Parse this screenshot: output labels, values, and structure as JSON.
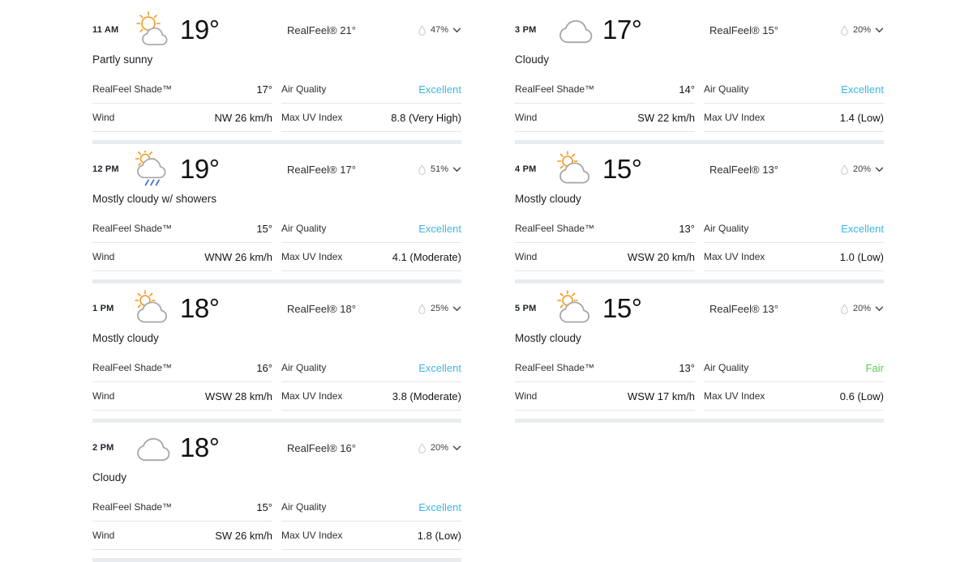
{
  "labels": {
    "realfeel_prefix": "RealFeel®",
    "shade": "RealFeel Shade™",
    "air": "Air Quality",
    "wind": "Wind",
    "uv": "Max UV Index"
  },
  "colors": {
    "air_quality": {
      "Excellent": "#3eb5e5",
      "Fair": "#50d04b"
    },
    "sun": "#f29a1f",
    "cloud_outline": "#a6a6a6",
    "rain": "#4779c4",
    "separator": "#e9ecef"
  },
  "cards": [
    {
      "column": "left",
      "time": "11 AM",
      "icon": "partly-sunny",
      "temp": "19°",
      "realfeel": "21°",
      "precip": "47%",
      "condition": "Partly sunny",
      "shade": "17°",
      "air_quality": "Excellent",
      "wind": "NW 26 km/h",
      "uv": "8.8 (Very High)"
    },
    {
      "column": "left",
      "time": "12 PM",
      "icon": "showers",
      "temp": "19°",
      "realfeel": "17°",
      "precip": "51%",
      "condition": "Mostly cloudy w/ showers",
      "shade": "15°",
      "air_quality": "Excellent",
      "wind": "WNW 26 km/h",
      "uv": "4.1 (Moderate)"
    },
    {
      "column": "left",
      "time": "1 PM",
      "icon": "mostly-cloudy",
      "temp": "18°",
      "realfeel": "18°",
      "precip": "25%",
      "condition": "Mostly cloudy",
      "shade": "16°",
      "air_quality": "Excellent",
      "wind": "WSW 28 km/h",
      "uv": "3.8 (Moderate)"
    },
    {
      "column": "left",
      "time": "2 PM",
      "icon": "cloudy",
      "temp": "18°",
      "realfeel": "16°",
      "precip": "20%",
      "condition": "Cloudy",
      "shade": "15°",
      "air_quality": "Excellent",
      "wind": "SW 26 km/h",
      "uv": "1.8 (Low)"
    },
    {
      "column": "right",
      "time": "3 PM",
      "icon": "cloudy",
      "temp": "17°",
      "realfeel": "15°",
      "precip": "20%",
      "condition": "Cloudy",
      "shade": "14°",
      "air_quality": "Excellent",
      "wind": "SW 22 km/h",
      "uv": "1.4 (Low)"
    },
    {
      "column": "right",
      "time": "4 PM",
      "icon": "mostly-cloudy",
      "temp": "15°",
      "realfeel": "13°",
      "precip": "20%",
      "condition": "Mostly cloudy",
      "shade": "13°",
      "air_quality": "Excellent",
      "wind": "WSW 20 km/h",
      "uv": "1.0 (Low)"
    },
    {
      "column": "right",
      "time": "5 PM",
      "icon": "mostly-cloudy",
      "temp": "15°",
      "realfeel": "13°",
      "precip": "20%",
      "condition": "Mostly cloudy",
      "shade": "13°",
      "air_quality": "Fair",
      "wind": "WSW 17 km/h",
      "uv": "0.6 (Low)"
    }
  ]
}
